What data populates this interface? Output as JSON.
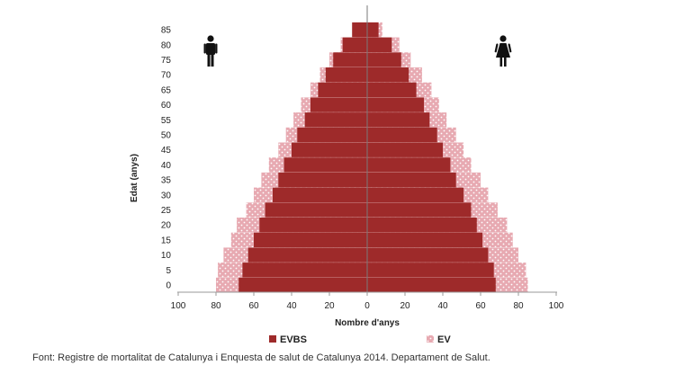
{
  "chart_data": {
    "type": "bar",
    "orientation": "horizontal-diverging",
    "ylabel": "Edat (anys)",
    "xlabel": "Nombre d'anys",
    "age_ticks": [
      "0",
      "5",
      "10",
      "15",
      "20",
      "25",
      "30",
      "35",
      "40",
      "45",
      "50",
      "55",
      "60",
      "65",
      "70",
      "75",
      "80",
      "85"
    ],
    "x_ticks": [
      "100",
      "80",
      "60",
      "40",
      "20",
      "0",
      "20",
      "40",
      "60",
      "80",
      "100"
    ],
    "xlim": [
      -100,
      100
    ],
    "grid": false,
    "legend_position": "bottom",
    "series": [
      {
        "name": "EVBS",
        "color": "#9e2a2a",
        "male": [
          68,
          66,
          63,
          60,
          57,
          54,
          50,
          47,
          44,
          40,
          37,
          33,
          30,
          26,
          22,
          18,
          13,
          8
        ],
        "female": [
          68,
          67,
          64,
          61,
          58,
          55,
          51,
          47,
          44,
          40,
          37,
          33,
          30,
          26,
          22,
          18,
          13,
          6
        ]
      },
      {
        "name": "EV",
        "color": "#e7a9b1",
        "male": [
          80,
          79,
          76,
          72,
          69,
          64,
          60,
          56,
          52,
          47,
          43,
          39,
          35,
          30,
          25,
          20,
          14,
          6
        ],
        "female": [
          85,
          84,
          80,
          77,
          74,
          69,
          64,
          60,
          55,
          51,
          47,
          42,
          38,
          34,
          29,
          23,
          17,
          8
        ]
      }
    ]
  },
  "icons": {
    "male": "male-figure-icon",
    "female": "female-figure-icon"
  },
  "source": "Font: Registre de mortalitat de Catalunya i Enquesta de salut de Catalunya 2014. Departament de Salut."
}
